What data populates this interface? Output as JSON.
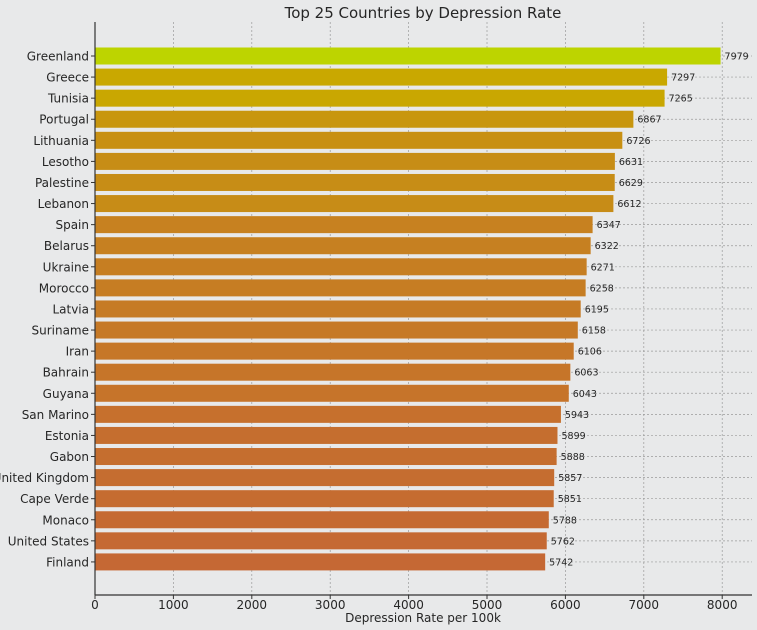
{
  "chart_data": {
    "type": "bar",
    "orientation": "horizontal",
    "title": "Top 25 Countries by Depression Rate",
    "xlabel": "Depression Rate per 100k",
    "ylabel": "",
    "xlim": [
      0,
      8380
    ],
    "xticks": [
      0,
      1000,
      2000,
      3000,
      4000,
      5000,
      6000,
      7000,
      8000
    ],
    "grid": true,
    "categories": [
      "Greenland",
      "Greece",
      "Tunisia",
      "Portugal",
      "Lithuania",
      "Lesotho",
      "Palestine",
      "Lebanon",
      "Spain",
      "Belarus",
      "Ukraine",
      "Morocco",
      "Latvia",
      "Suriname",
      "Iran",
      "Bahrain",
      "Guyana",
      "San Marino",
      "Estonia",
      "Gabon",
      "United Kingdom",
      "Cape Verde",
      "Monaco",
      "United States",
      "Finland"
    ],
    "values": [
      7979,
      7297,
      7265,
      6867,
      6726,
      6631,
      6629,
      6612,
      6347,
      6322,
      6271,
      6258,
      6195,
      6158,
      6106,
      6063,
      6043,
      5943,
      5899,
      5888,
      5857,
      5851,
      5788,
      5762,
      5742
    ],
    "colors": {
      "max": "#bdd400",
      "high": "#c9a800",
      "low": "#c56834"
    }
  }
}
